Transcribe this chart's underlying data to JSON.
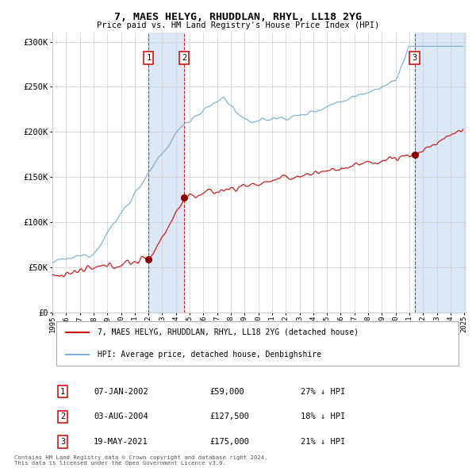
{
  "title": "7, MAES HELYG, RHUDDLAN, RHYL, LL18 2YG",
  "subtitle": "Price paid vs. HM Land Registry's House Price Index (HPI)",
  "ylim": [
    0,
    310000
  ],
  "yticks": [
    0,
    50000,
    100000,
    150000,
    200000,
    250000,
    300000
  ],
  "ytick_labels": [
    "£0",
    "£50K",
    "£100K",
    "£150K",
    "£200K",
    "£250K",
    "£300K"
  ],
  "transactions": [
    {
      "date": "2002-01-07",
      "price": 59000,
      "label": "1",
      "pct": "27% ↓ HPI",
      "display": "07-JAN-2002",
      "price_display": "£59,000"
    },
    {
      "date": "2004-08-03",
      "price": 127500,
      "label": "2",
      "pct": "18% ↓ HPI",
      "display": "03-AUG-2004",
      "price_display": "£127,500"
    },
    {
      "date": "2021-05-19",
      "price": 175000,
      "label": "3",
      "pct": "21% ↓ HPI",
      "display": "19-MAY-2021",
      "price_display": "£175,000"
    }
  ],
  "hpi_line_color": "#7BAFD4",
  "price_line_color": "#CC1111",
  "dot_color": "#880000",
  "highlight_color": "#DCE9F5",
  "vline_color": "#CC2222",
  "grid_color": "#CCCCCC",
  "bg_color": "#FFFFFF",
  "legend_label_price": "7, MAES HELYG, RHUDDLAN, RHYL, LL18 2YG (detached house)",
  "legend_label_hpi": "HPI: Average price, detached house, Denbighshire",
  "footnote1": "Contains HM Land Registry data © Crown copyright and database right 2024.",
  "footnote2": "This data is licensed under the Open Government Licence v3.0."
}
